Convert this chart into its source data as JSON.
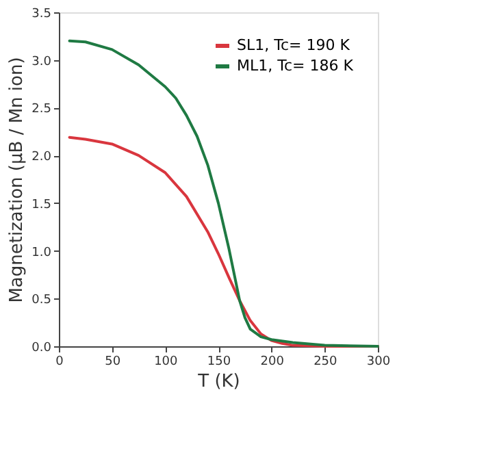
{
  "chart_data": {
    "type": "line",
    "xlabel": "T (K)",
    "ylabel": "Magnetization (μB / Mn ion)",
    "xlim": [
      0,
      300
    ],
    "xticks": [
      0,
      50,
      100,
      150,
      200,
      250,
      300
    ],
    "ylim": [
      0,
      3.5
    ],
    "yticks": [
      {
        "value": 0,
        "label": "0.0"
      },
      0.5,
      {
        "value": 1,
        "label": "1.0"
      },
      1.5,
      {
        "value": 2,
        "label": "2.0"
      },
      2.5,
      {
        "value": 3,
        "label": "3.0"
      },
      3.5
    ],
    "grid": false,
    "legend": "top right",
    "marker": "none",
    "line_style": "solid",
    "series": [
      {
        "name": "SL1, Tc= 190 K",
        "color": "#d9363e",
        "x": [
          10,
          25,
          50,
          75,
          100,
          120,
          140,
          150,
          160,
          170,
          180,
          190,
          200,
          210,
          220,
          250,
          300
        ],
        "values": [
          2.19,
          2.17,
          2.12,
          2.0,
          1.82,
          1.57,
          1.2,
          0.97,
          0.72,
          0.48,
          0.27,
          0.13,
          0.06,
          0.03,
          0.01,
          0.0,
          0.0
        ]
      },
      {
        "name": "ML1, Tc= 186 K",
        "color": "#1f7a43",
        "x": [
          10,
          25,
          50,
          75,
          100,
          110,
          120,
          130,
          140,
          150,
          160,
          165,
          170,
          175,
          180,
          190,
          200,
          220,
          250,
          300
        ],
        "values": [
          3.2,
          3.19,
          3.11,
          2.95,
          2.72,
          2.6,
          2.42,
          2.2,
          1.9,
          1.5,
          1.02,
          0.75,
          0.48,
          0.3,
          0.18,
          0.1,
          0.07,
          0.04,
          0.01,
          0.0
        ]
      }
    ]
  }
}
